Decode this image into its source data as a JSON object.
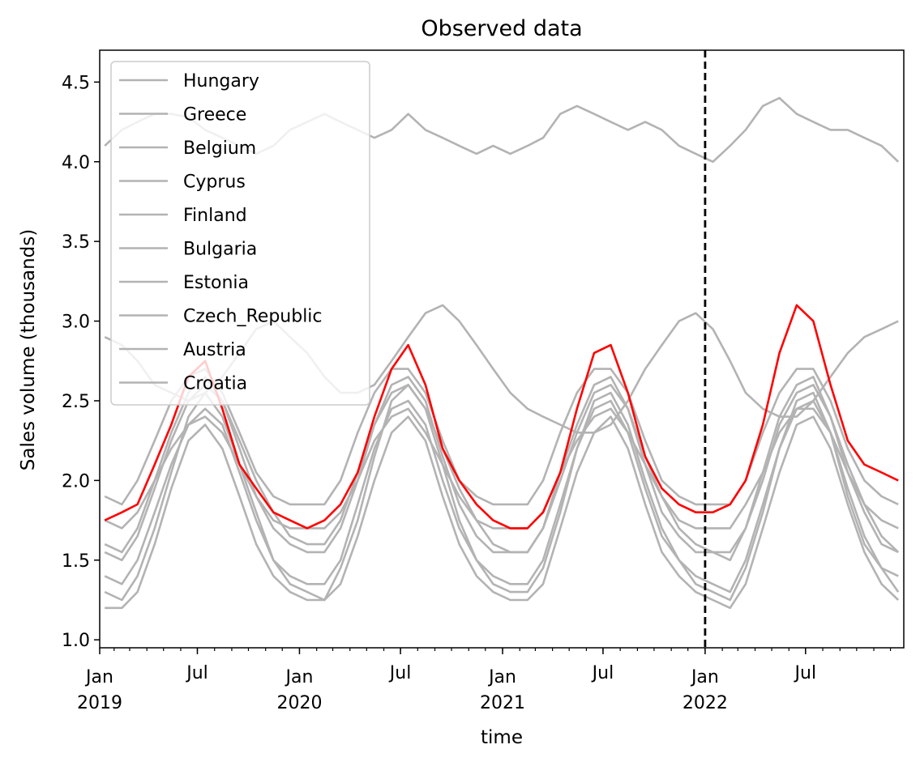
{
  "chart_data": {
    "type": "line",
    "title": "Observed data",
    "xlabel": "time",
    "ylabel": "Sales volume (thousands)",
    "x_unit": "weekly dates",
    "xlim": [
      "2019-01-06",
      "2022-12-25"
    ],
    "ylim": [
      0.95,
      4.7
    ],
    "yticks": [
      1.0,
      1.5,
      2.0,
      2.5,
      3.0,
      3.5,
      4.0,
      4.5
    ],
    "xticks": [
      {
        "date": "2019-01-01",
        "line1": "Jan",
        "line2": "2019"
      },
      {
        "date": "2019-07-01",
        "line1": "Jul",
        "line2": ""
      },
      {
        "date": "2020-01-01",
        "line1": "Jan",
        "line2": "2020"
      },
      {
        "date": "2020-07-01",
        "line1": "Jul",
        "line2": ""
      },
      {
        "date": "2021-01-01",
        "line1": "Jan",
        "line2": "2021"
      },
      {
        "date": "2021-07-01",
        "line1": "Jul",
        "line2": ""
      },
      {
        "date": "2022-01-01",
        "line1": "Jan",
        "line2": "2022"
      },
      {
        "date": "2022-07-01",
        "line1": "Jul",
        "line2": ""
      }
    ],
    "vline": "2022-01-01",
    "grid": false,
    "legend_position": "upper-left",
    "gray_color": "#b3b3b3",
    "highlight_color": "#ff0000",
    "x_monthly": [
      "2019-01",
      "2019-02",
      "2019-03",
      "2019-04",
      "2019-05",
      "2019-06",
      "2019-07",
      "2019-08",
      "2019-09",
      "2019-10",
      "2019-11",
      "2019-12",
      "2020-01",
      "2020-02",
      "2020-03",
      "2020-04",
      "2020-05",
      "2020-06",
      "2020-07",
      "2020-08",
      "2020-09",
      "2020-10",
      "2020-11",
      "2020-12",
      "2021-01",
      "2021-02",
      "2021-03",
      "2021-04",
      "2021-05",
      "2021-06",
      "2021-07",
      "2021-08",
      "2021-09",
      "2021-10",
      "2021-11",
      "2021-12",
      "2022-01",
      "2022-02",
      "2022-03",
      "2022-04",
      "2022-05",
      "2022-06",
      "2022-07",
      "2022-08",
      "2022-09",
      "2022-10",
      "2022-11",
      "2022-12"
    ],
    "series": [
      {
        "name": "Hungary",
        "color": "#b3b3b3",
        "values": [
          4.1,
          4.2,
          4.25,
          4.3,
          4.3,
          4.28,
          4.2,
          4.15,
          4.1,
          4.05,
          4.1,
          4.2,
          4.25,
          4.3,
          4.25,
          4.2,
          4.15,
          4.2,
          4.3,
          4.2,
          4.15,
          4.1,
          4.05,
          4.1,
          4.05,
          4.1,
          4.15,
          4.3,
          4.35,
          4.3,
          4.25,
          4.2,
          4.25,
          4.2,
          4.1,
          4.05,
          4.0,
          4.1,
          4.2,
          4.35,
          4.4,
          4.3,
          4.25,
          4.2,
          4.2,
          4.15,
          4.1,
          4.0
        ]
      },
      {
        "name": "Greece",
        "color": "#b3b3b3",
        "values": [
          2.9,
          2.85,
          2.75,
          2.6,
          2.55,
          2.5,
          2.55,
          2.65,
          2.8,
          2.95,
          3.0,
          2.9,
          2.8,
          2.65,
          2.55,
          2.55,
          2.6,
          2.75,
          2.9,
          3.05,
          3.1,
          3.0,
          2.85,
          2.7,
          2.55,
          2.45,
          2.4,
          2.35,
          2.3,
          2.3,
          2.35,
          2.5,
          2.7,
          2.85,
          3.0,
          3.05,
          2.95,
          2.75,
          2.55,
          2.45,
          2.4,
          2.4,
          2.5,
          2.65,
          2.8,
          2.9,
          2.95,
          3.0
        ]
      },
      {
        "name": "Belgium",
        "color": "#b3b3b3",
        "values": [
          1.3,
          1.25,
          1.4,
          1.7,
          2.05,
          2.4,
          2.55,
          2.4,
          2.1,
          1.8,
          1.5,
          1.35,
          1.3,
          1.25,
          1.45,
          1.75,
          2.15,
          2.5,
          2.6,
          2.45,
          2.1,
          1.75,
          1.5,
          1.35,
          1.3,
          1.3,
          1.45,
          1.8,
          2.2,
          2.5,
          2.55,
          2.35,
          2.0,
          1.7,
          1.5,
          1.35,
          1.3,
          1.25,
          1.45,
          1.8,
          2.2,
          2.5,
          2.55,
          2.3,
          1.95,
          1.65,
          1.45,
          1.3
        ]
      },
      {
        "name": "Cyprus",
        "color": "#b3b3b3",
        "values": [
          1.55,
          1.5,
          1.65,
          1.95,
          2.25,
          2.5,
          2.6,
          2.5,
          2.25,
          2.0,
          1.8,
          1.65,
          1.6,
          1.6,
          1.75,
          2.05,
          2.35,
          2.55,
          2.6,
          2.45,
          2.2,
          1.95,
          1.75,
          1.6,
          1.55,
          1.55,
          1.7,
          2.0,
          2.3,
          2.55,
          2.6,
          2.45,
          2.15,
          1.9,
          1.7,
          1.6,
          1.55,
          1.55,
          1.7,
          2.0,
          2.35,
          2.55,
          2.6,
          2.4,
          2.1,
          1.85,
          1.65,
          1.55
        ]
      },
      {
        "name": "Finland",
        "color": "#b3b3b3",
        "values": [
          1.4,
          1.35,
          1.5,
          1.8,
          2.1,
          2.35,
          2.45,
          2.35,
          2.05,
          1.75,
          1.5,
          1.4,
          1.35,
          1.35,
          1.5,
          1.85,
          2.2,
          2.45,
          2.5,
          2.35,
          2.0,
          1.7,
          1.5,
          1.4,
          1.35,
          1.35,
          1.5,
          1.85,
          2.2,
          2.45,
          2.5,
          2.3,
          1.95,
          1.65,
          1.5,
          1.4,
          1.35,
          1.3,
          1.5,
          1.85,
          2.2,
          2.45,
          2.5,
          2.3,
          1.9,
          1.6,
          1.45,
          1.4
        ]
      },
      {
        "name": "Bulgaria",
        "color": "#b3b3b3",
        "values": [
          1.9,
          1.85,
          2.0,
          2.25,
          2.5,
          2.65,
          2.7,
          2.55,
          2.3,
          2.05,
          1.9,
          1.85,
          1.85,
          1.85,
          2.0,
          2.3,
          2.55,
          2.7,
          2.7,
          2.55,
          2.25,
          2.0,
          1.9,
          1.85,
          1.85,
          1.85,
          2.0,
          2.3,
          2.55,
          2.7,
          2.7,
          2.55,
          2.25,
          2.0,
          1.9,
          1.85,
          1.85,
          1.85,
          2.0,
          2.3,
          2.55,
          2.7,
          2.7,
          2.5,
          2.2,
          2.0,
          1.9,
          1.85
        ]
      },
      {
        "name": "Estonia",
        "color": "#b3b3b3",
        "values": [
          1.2,
          1.2,
          1.3,
          1.6,
          1.95,
          2.25,
          2.35,
          2.2,
          1.9,
          1.6,
          1.4,
          1.3,
          1.25,
          1.25,
          1.35,
          1.65,
          2.0,
          2.3,
          2.4,
          2.25,
          1.9,
          1.6,
          1.4,
          1.3,
          1.25,
          1.25,
          1.35,
          1.7,
          2.05,
          2.3,
          2.4,
          2.2,
          1.85,
          1.55,
          1.4,
          1.3,
          1.25,
          1.2,
          1.35,
          1.7,
          2.05,
          2.35,
          2.4,
          2.2,
          1.85,
          1.55,
          1.35,
          1.25
        ]
      },
      {
        "name": "Czech_Republic",
        "color": "#b3b3b3",
        "values": [
          1.75,
          1.7,
          1.8,
          2.0,
          2.2,
          2.35,
          2.4,
          2.3,
          2.1,
          1.9,
          1.75,
          1.7,
          1.7,
          1.7,
          1.8,
          2.0,
          2.25,
          2.4,
          2.45,
          2.3,
          2.1,
          1.9,
          1.75,
          1.7,
          1.7,
          1.7,
          1.8,
          2.05,
          2.25,
          2.4,
          2.45,
          2.3,
          2.1,
          1.9,
          1.75,
          1.7,
          1.7,
          1.7,
          1.85,
          2.05,
          2.3,
          2.45,
          2.45,
          2.3,
          2.05,
          1.85,
          1.75,
          1.7
        ]
      },
      {
        "name": "Austria",
        "color": "#b3b3b3",
        "values": [
          1.6,
          1.55,
          1.7,
          2.0,
          2.3,
          2.55,
          2.65,
          2.5,
          2.2,
          1.9,
          1.7,
          1.6,
          1.55,
          1.55,
          1.7,
          2.0,
          2.35,
          2.6,
          2.65,
          2.5,
          2.15,
          1.85,
          1.65,
          1.55,
          1.55,
          1.55,
          1.7,
          2.05,
          2.35,
          2.6,
          2.65,
          2.45,
          2.1,
          1.8,
          1.65,
          1.55,
          1.55,
          1.5,
          1.7,
          2.05,
          2.4,
          2.6,
          2.65,
          2.4,
          2.05,
          1.8,
          1.6,
          1.55
        ]
      },
      {
        "name": "Croatia",
        "color": "#ff0000",
        "values": [
          1.75,
          1.8,
          1.85,
          2.1,
          2.35,
          2.65,
          2.75,
          2.45,
          2.1,
          1.95,
          1.8,
          1.75,
          1.7,
          1.75,
          1.85,
          2.05,
          2.4,
          2.7,
          2.85,
          2.6,
          2.2,
          2.0,
          1.85,
          1.75,
          1.7,
          1.7,
          1.8,
          2.05,
          2.45,
          2.8,
          2.85,
          2.55,
          2.15,
          1.95,
          1.85,
          1.8,
          1.8,
          1.85,
          2.0,
          2.35,
          2.8,
          3.1,
          3.0,
          2.6,
          2.25,
          2.1,
          2.05,
          2.0
        ]
      }
    ]
  }
}
